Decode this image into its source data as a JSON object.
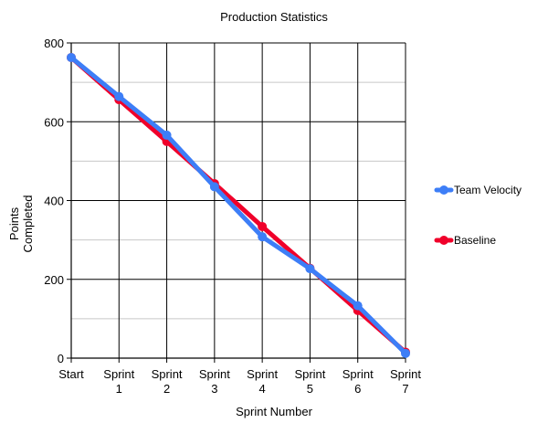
{
  "chart_data": {
    "type": "line",
    "title": "Production Statistics",
    "xlabel": "Sprint Number",
    "ylabel_lines": [
      "Points",
      "Completed"
    ],
    "categories": [
      [
        "Start"
      ],
      [
        "Sprint",
        "1"
      ],
      [
        "Sprint",
        "2"
      ],
      [
        "Sprint",
        "3"
      ],
      [
        "Sprint",
        "4"
      ],
      [
        "Sprint",
        "5"
      ],
      [
        "Sprint",
        "6"
      ],
      [
        "Sprint",
        "7"
      ]
    ],
    "ylim": [
      0,
      800
    ],
    "yticks": [
      0,
      200,
      400,
      600,
      800
    ],
    "grid": true,
    "legend_position": "right",
    "series": [
      {
        "name": "Baseline",
        "color": "#f0002a",
        "values": [
          763,
          656,
          550,
          443,
          334,
          228,
          121,
          15
        ]
      },
      {
        "name": "Team Velocity",
        "color": "#3d7ef7",
        "values": [
          763,
          664,
          566,
          435,
          308,
          227,
          133,
          12
        ]
      }
    ]
  }
}
